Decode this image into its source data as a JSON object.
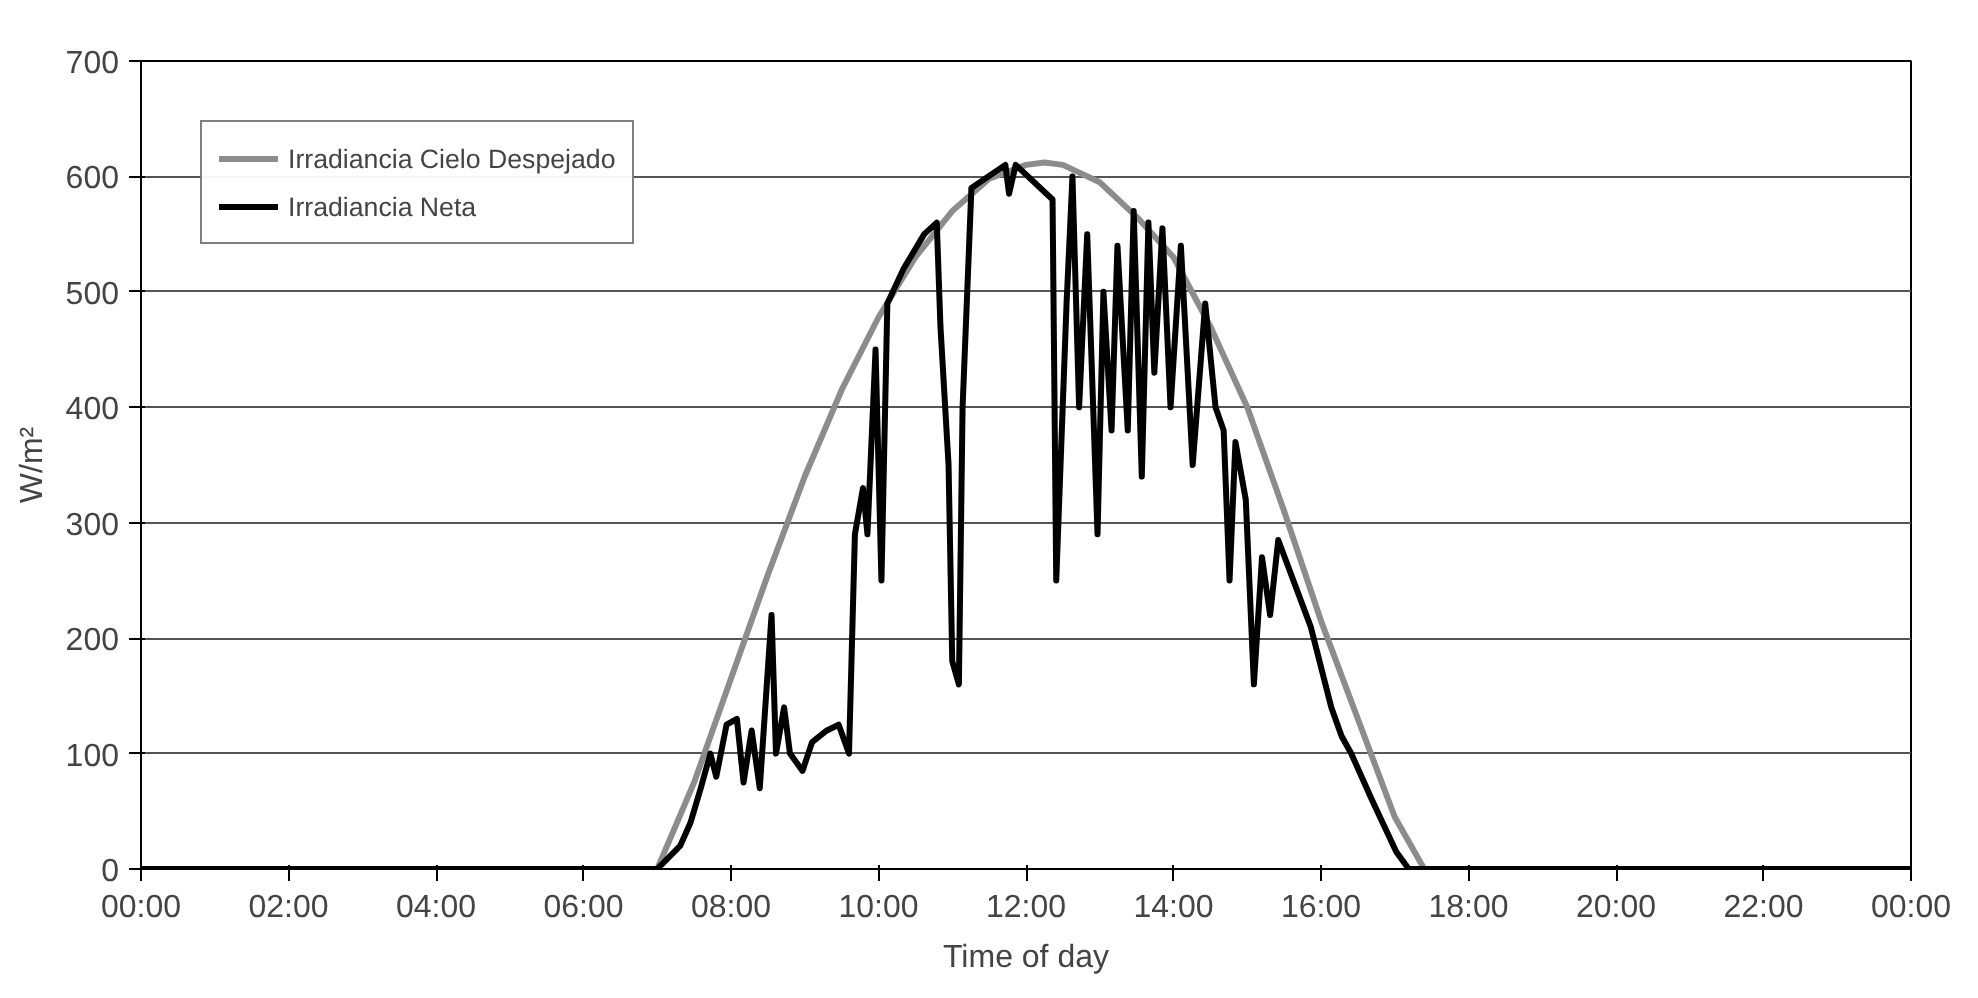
{
  "chart_data": {
    "type": "line",
    "xlabel": "Time of day",
    "ylabel": "W/m²",
    "xlim": [
      0,
      24
    ],
    "ylim": [
      0,
      700
    ],
    "xticks": [
      {
        "value": 0,
        "label": "00:00"
      },
      {
        "value": 2,
        "label": "02:00"
      },
      {
        "value": 4,
        "label": "04:00"
      },
      {
        "value": 6,
        "label": "06:00"
      },
      {
        "value": 8,
        "label": "08:00"
      },
      {
        "value": 10,
        "label": "10:00"
      },
      {
        "value": 12,
        "label": "12:00"
      },
      {
        "value": 14,
        "label": "14:00"
      },
      {
        "value": 16,
        "label": "16:00"
      },
      {
        "value": 18,
        "label": "18:00"
      },
      {
        "value": 20,
        "label": "20:00"
      },
      {
        "value": 22,
        "label": "22:00"
      },
      {
        "value": 24,
        "label": "00:00"
      }
    ],
    "yticks": [
      0,
      100,
      200,
      300,
      400,
      500,
      600,
      700
    ],
    "grid": "y",
    "legend": "top left",
    "marker": "none",
    "line_style": "solid",
    "series": [
      {
        "name": "Irradiancia Cielo Despejado",
        "color": "#8c8c8c",
        "x": [
          0,
          7.0,
          7.5,
          8.0,
          8.5,
          9.0,
          9.5,
          10.0,
          10.5,
          11.0,
          11.5,
          12.0,
          12.25,
          12.5,
          13.0,
          13.5,
          14.0,
          14.5,
          15.0,
          15.5,
          16.0,
          16.5,
          17.0,
          17.4,
          24
        ],
        "values": [
          0,
          0,
          75,
          165,
          255,
          340,
          415,
          478,
          530,
          570,
          598,
          610,
          612,
          610,
          595,
          565,
          530,
          470,
          400,
          310,
          215,
          130,
          45,
          0,
          0
        ]
      },
      {
        "name": "Irradiancia Neta",
        "color": "#000000",
        "x": [
          0,
          7.0,
          7.31,
          7.45,
          7.59,
          7.72,
          7.8,
          7.94,
          8.08,
          8.17,
          8.28,
          8.39,
          8.55,
          8.61,
          8.72,
          8.8,
          8.97,
          9.1,
          9.3,
          9.46,
          9.6,
          9.68,
          9.79,
          9.85,
          9.96,
          10.04,
          10.12,
          10.34,
          10.62,
          10.79,
          10.84,
          10.95,
          11.0,
          11.09,
          11.14,
          11.26,
          11.72,
          11.77,
          11.86,
          12.36,
          12.41,
          12.55,
          12.63,
          12.72,
          12.83,
          12.97,
          13.05,
          13.16,
          13.24,
          13.38,
          13.46,
          13.57,
          13.66,
          13.74,
          13.85,
          13.96,
          14.1,
          14.26,
          14.43,
          14.57,
          14.68,
          14.76,
          14.84,
          14.98,
          15.09,
          15.2,
          15.31,
          15.42,
          15.86,
          16.14,
          16.28,
          16.41,
          16.69,
          17.02,
          17.19,
          24
        ],
        "values": [
          0,
          0,
          20,
          40,
          70,
          100,
          80,
          125,
          130,
          75,
          120,
          70,
          220,
          100,
          140,
          100,
          85,
          110,
          120,
          125,
          100,
          290,
          330,
          290,
          450,
          250,
          490,
          520,
          550,
          560,
          470,
          350,
          180,
          160,
          400,
          590,
          610,
          585,
          610,
          580,
          250,
          490,
          600,
          400,
          550,
          290,
          500,
          380,
          540,
          380,
          570,
          340,
          560,
          430,
          555,
          400,
          540,
          350,
          490,
          400,
          380,
          250,
          370,
          320,
          160,
          270,
          220,
          285,
          210,
          140,
          115,
          100,
          60,
          15,
          0,
          0
        ]
      }
    ]
  }
}
